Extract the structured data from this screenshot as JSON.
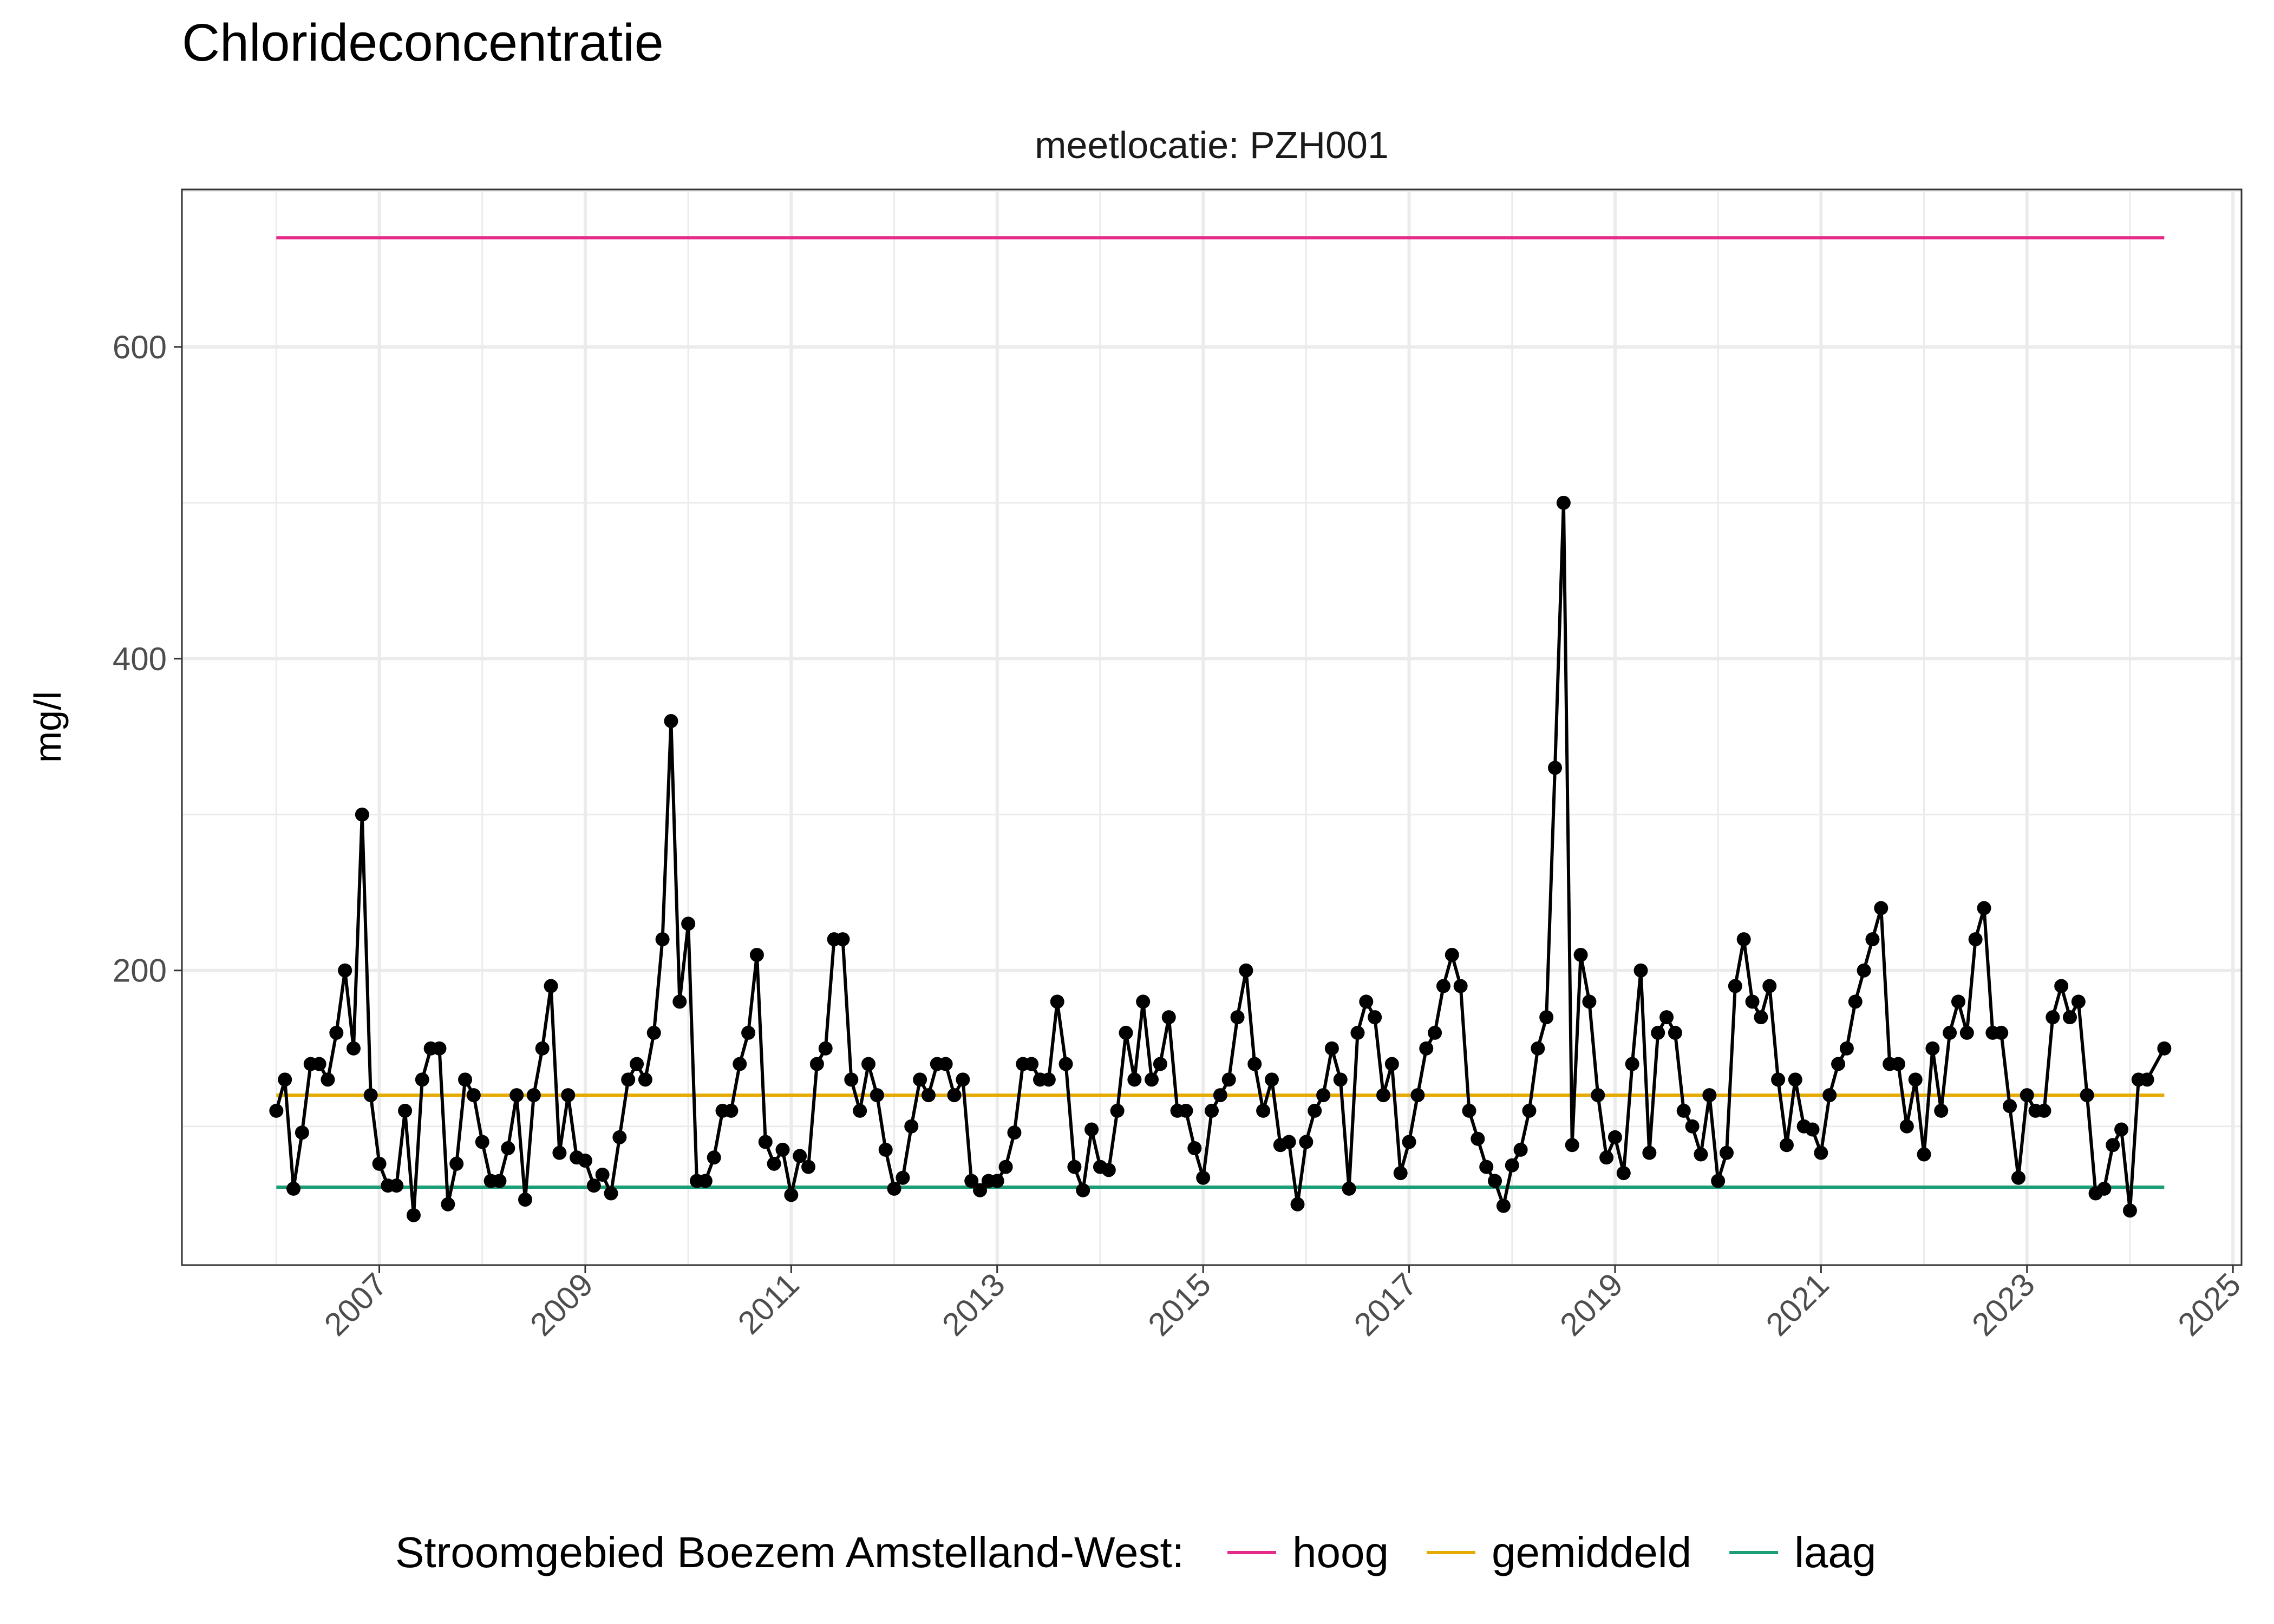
{
  "chart_data": {
    "type": "line",
    "title": "Chlorideconcentratie",
    "facet_label": "meetlocatie: PZH001",
    "xlabel": "",
    "ylabel": "mg/l",
    "ylim": [
      11,
      701
    ],
    "xlim": [
      "2005-02",
      "2025-02"
    ],
    "y_ticks": [
      200,
      400,
      600
    ],
    "x_ticks": [
      "2007",
      "2009",
      "2011",
      "2013",
      "2015",
      "2017",
      "2019",
      "2021",
      "2023",
      "2025"
    ],
    "grid": true,
    "legend": {
      "title": "Stroomgebied Boezem Amstelland-West:",
      "position": "bottom",
      "entries": [
        {
          "label": "hoog",
          "color": "#E7298A"
        },
        {
          "label": "gemiddeld",
          "color": "#E6AB02"
        },
        {
          "label": "laag",
          "color": "#1B9E77"
        }
      ]
    },
    "reference_lines": [
      {
        "name": "hoog",
        "value": 670,
        "color": "#E7298A",
        "from": "2006-01",
        "to": "2024-05"
      },
      {
        "name": "gemiddeld",
        "value": 120,
        "color": "#E6AB02",
        "from": "2006-01",
        "to": "2024-05"
      },
      {
        "name": "laag",
        "value": 61,
        "color": "#1B9E77",
        "from": "2006-01",
        "to": "2024-05"
      }
    ],
    "series": [
      {
        "color": "#000000",
        "points": [
          [
            "2006-01",
            110
          ],
          [
            "2006-02",
            130
          ],
          [
            "2006-03",
            60
          ],
          [
            "2006-04",
            96
          ],
          [
            "2006-05",
            140
          ],
          [
            "2006-06",
            140
          ],
          [
            "2006-07",
            130
          ],
          [
            "2006-08",
            160
          ],
          [
            "2006-09",
            200
          ],
          [
            "2006-10",
            150
          ],
          [
            "2006-11",
            300
          ],
          [
            "2006-12",
            120
          ],
          [
            "2007-01",
            76
          ],
          [
            "2007-02",
            62
          ],
          [
            "2007-03",
            62
          ],
          [
            "2007-04",
            110
          ],
          [
            "2007-05",
            43
          ],
          [
            "2007-06",
            130
          ],
          [
            "2007-07",
            150
          ],
          [
            "2007-08",
            150
          ],
          [
            "2007-09",
            50
          ],
          [
            "2007-10",
            76
          ],
          [
            "2007-11",
            130
          ],
          [
            "2007-12",
            120
          ],
          [
            "2008-01",
            90
          ],
          [
            "2008-02",
            65
          ],
          [
            "2008-03",
            65
          ],
          [
            "2008-04",
            86
          ],
          [
            "2008-05",
            120
          ],
          [
            "2008-06",
            53
          ],
          [
            "2008-07",
            120
          ],
          [
            "2008-08",
            150
          ],
          [
            "2008-09",
            190
          ],
          [
            "2008-10",
            83
          ],
          [
            "2008-11",
            120
          ],
          [
            "2008-12",
            80
          ],
          [
            "2009-01",
            78
          ],
          [
            "2009-02",
            62
          ],
          [
            "2009-03",
            69
          ],
          [
            "2009-04",
            57
          ],
          [
            "2009-05",
            93
          ],
          [
            "2009-06",
            130
          ],
          [
            "2009-07",
            140
          ],
          [
            "2009-08",
            130
          ],
          [
            "2009-09",
            160
          ],
          [
            "2009-10",
            220
          ],
          [
            "2009-11",
            360
          ],
          [
            "2009-12",
            180
          ],
          [
            "2010-01",
            230
          ],
          [
            "2010-02",
            65
          ],
          [
            "2010-03",
            65
          ],
          [
            "2010-04",
            80
          ],
          [
            "2010-05",
            110
          ],
          [
            "2010-06",
            110
          ],
          [
            "2010-07",
            140
          ],
          [
            "2010-08",
            160
          ],
          [
            "2010-09",
            210
          ],
          [
            "2010-10",
            90
          ],
          [
            "2010-11",
            76
          ],
          [
            "2010-12",
            85
          ],
          [
            "2011-01",
            56
          ],
          [
            "2011-02",
            81
          ],
          [
            "2011-03",
            74
          ],
          [
            "2011-04",
            140
          ],
          [
            "2011-05",
            150
          ],
          [
            "2011-06",
            220
          ],
          [
            "2011-07",
            220
          ],
          [
            "2011-08",
            130
          ],
          [
            "2011-09",
            110
          ],
          [
            "2011-10",
            140
          ],
          [
            "2011-11",
            120
          ],
          [
            "2011-12",
            85
          ],
          [
            "2012-01",
            60
          ],
          [
            "2012-02",
            67
          ],
          [
            "2012-03",
            100
          ],
          [
            "2012-04",
            130
          ],
          [
            "2012-05",
            120
          ],
          [
            "2012-06",
            140
          ],
          [
            "2012-07",
            140
          ],
          [
            "2012-08",
            120
          ],
          [
            "2012-09",
            130
          ],
          [
            "2012-10",
            65
          ],
          [
            "2012-11",
            59
          ],
          [
            "2012-12",
            65
          ],
          [
            "2013-01",
            65
          ],
          [
            "2013-02",
            74
          ],
          [
            "2013-03",
            96
          ],
          [
            "2013-04",
            140
          ],
          [
            "2013-05",
            140
          ],
          [
            "2013-06",
            130
          ],
          [
            "2013-07",
            130
          ],
          [
            "2013-08",
            180
          ],
          [
            "2013-09",
            140
          ],
          [
            "2013-10",
            74
          ],
          [
            "2013-11",
            59
          ],
          [
            "2013-12",
            98
          ],
          [
            "2014-01",
            74
          ],
          [
            "2014-02",
            72
          ],
          [
            "2014-03",
            110
          ],
          [
            "2014-04",
            160
          ],
          [
            "2014-05",
            130
          ],
          [
            "2014-06",
            180
          ],
          [
            "2014-07",
            130
          ],
          [
            "2014-08",
            140
          ],
          [
            "2014-09",
            170
          ],
          [
            "2014-10",
            110
          ],
          [
            "2014-11",
            110
          ],
          [
            "2014-12",
            86
          ],
          [
            "2015-01",
            67
          ],
          [
            "2015-02",
            110
          ],
          [
            "2015-03",
            120
          ],
          [
            "2015-04",
            130
          ],
          [
            "2015-05",
            170
          ],
          [
            "2015-06",
            200
          ],
          [
            "2015-07",
            140
          ],
          [
            "2015-08",
            110
          ],
          [
            "2015-09",
            130
          ],
          [
            "2015-10",
            88
          ],
          [
            "2015-11",
            90
          ],
          [
            "2015-12",
            50
          ],
          [
            "2016-01",
            90
          ],
          [
            "2016-02",
            110
          ],
          [
            "2016-03",
            120
          ],
          [
            "2016-04",
            150
          ],
          [
            "2016-05",
            130
          ],
          [
            "2016-06",
            60
          ],
          [
            "2016-07",
            160
          ],
          [
            "2016-08",
            180
          ],
          [
            "2016-09",
            170
          ],
          [
            "2016-10",
            120
          ],
          [
            "2016-11",
            140
          ],
          [
            "2016-12",
            70
          ],
          [
            "2017-01",
            90
          ],
          [
            "2017-02",
            120
          ],
          [
            "2017-03",
            150
          ],
          [
            "2017-04",
            160
          ],
          [
            "2017-05",
            190
          ],
          [
            "2017-06",
            210
          ],
          [
            "2017-07",
            190
          ],
          [
            "2017-08",
            110
          ],
          [
            "2017-09",
            92
          ],
          [
            "2017-10",
            74
          ],
          [
            "2017-11",
            65
          ],
          [
            "2017-12",
            49
          ],
          [
            "2018-01",
            75
          ],
          [
            "2018-02",
            85
          ],
          [
            "2018-03",
            110
          ],
          [
            "2018-04",
            150
          ],
          [
            "2018-05",
            170
          ],
          [
            "2018-06",
            330
          ],
          [
            "2018-07",
            500
          ],
          [
            "2018-08",
            88
          ],
          [
            "2018-09",
            210
          ],
          [
            "2018-10",
            180
          ],
          [
            "2018-11",
            120
          ],
          [
            "2018-12",
            80
          ],
          [
            "2019-01",
            93
          ],
          [
            "2019-02",
            70
          ],
          [
            "2019-03",
            140
          ],
          [
            "2019-04",
            200
          ],
          [
            "2019-05",
            83
          ],
          [
            "2019-06",
            160
          ],
          [
            "2019-07",
            170
          ],
          [
            "2019-08",
            160
          ],
          [
            "2019-09",
            110
          ],
          [
            "2019-10",
            100
          ],
          [
            "2019-11",
            82
          ],
          [
            "2019-12",
            120
          ],
          [
            "2020-01",
            65
          ],
          [
            "2020-02",
            83
          ],
          [
            "2020-03",
            190
          ],
          [
            "2020-04",
            220
          ],
          [
            "2020-05",
            180
          ],
          [
            "2020-06",
            170
          ],
          [
            "2020-07",
            190
          ],
          [
            "2020-08",
            130
          ],
          [
            "2020-09",
            88
          ],
          [
            "2020-10",
            130
          ],
          [
            "2020-11",
            100
          ],
          [
            "2020-12",
            98
          ],
          [
            "2021-01",
            83
          ],
          [
            "2021-02",
            120
          ],
          [
            "2021-03",
            140
          ],
          [
            "2021-04",
            150
          ],
          [
            "2021-05",
            180
          ],
          [
            "2021-06",
            200
          ],
          [
            "2021-07",
            220
          ],
          [
            "2021-08",
            240
          ],
          [
            "2021-09",
            140
          ],
          [
            "2021-10",
            140
          ],
          [
            "2021-11",
            100
          ],
          [
            "2021-12",
            130
          ],
          [
            "2022-01",
            82
          ],
          [
            "2022-02",
            150
          ],
          [
            "2022-03",
            110
          ],
          [
            "2022-04",
            160
          ],
          [
            "2022-05",
            180
          ],
          [
            "2022-06",
            160
          ],
          [
            "2022-07",
            220
          ],
          [
            "2022-08",
            240
          ],
          [
            "2022-09",
            160
          ],
          [
            "2022-10",
            160
          ],
          [
            "2022-11",
            113
          ],
          [
            "2022-12",
            67
          ],
          [
            "2023-01",
            120
          ],
          [
            "2023-02",
            110
          ],
          [
            "2023-03",
            110
          ],
          [
            "2023-04",
            170
          ],
          [
            "2023-05",
            190
          ],
          [
            "2023-06",
            170
          ],
          [
            "2023-07",
            180
          ],
          [
            "2023-08",
            120
          ],
          [
            "2023-09",
            57
          ],
          [
            "2023-10",
            60
          ],
          [
            "2023-11",
            88
          ],
          [
            "2023-12",
            98
          ],
          [
            "2024-01",
            46
          ],
          [
            "2024-02",
            130
          ],
          [
            "2024-03",
            130
          ],
          [
            "2024-05",
            150
          ]
        ]
      }
    ]
  }
}
